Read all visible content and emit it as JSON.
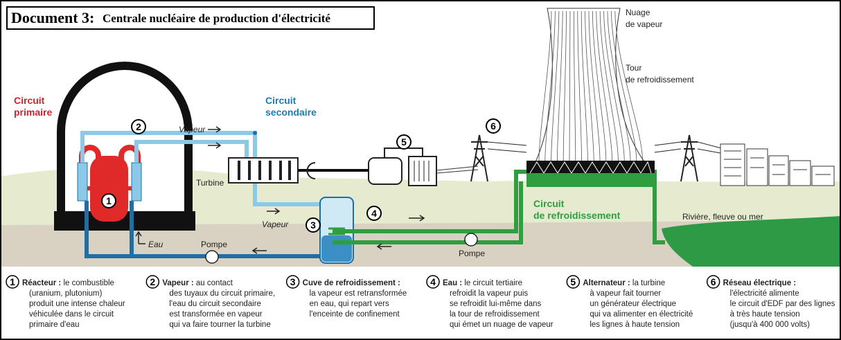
{
  "header": {
    "document": "Document 3:",
    "title": "Centrale nucléaire de production d'électricité"
  },
  "labels": {
    "circuit_primaire": [
      "Circuit",
      "primaire"
    ],
    "circuit_secondaire": [
      "Circuit",
      "secondaire"
    ],
    "vapeur_top": "Vapeur",
    "vapeur_bottom": "Vapeur",
    "turbine": "Turbine",
    "eau": "Eau",
    "pompe_left": "Pompe",
    "pompe_right": "Pompe",
    "circuit_refroidissement": [
      "Circuit",
      "de refroidissement"
    ],
    "nuage": [
      "Nuage",
      "de vapeur"
    ],
    "tour": [
      "Tour",
      "de refroidissement"
    ],
    "riviere": "Rivière, fleuve ou mer"
  },
  "markers": [
    "1",
    "2",
    "3",
    "4",
    "5",
    "6"
  ],
  "legend": [
    {
      "number": "1",
      "heading": "Réacteur :",
      "lines": [
        " le combustible",
        "(uranium, plutonium)",
        "produit une intense chaleur",
        "véhiculée dans le circuit",
        "primaire d'eau"
      ]
    },
    {
      "number": "2",
      "heading": "Vapeur :",
      "lines": [
        " au contact",
        "des tuyaux du circuit primaire,",
        "l'eau du circuit secondaire",
        "est transformée en vapeur",
        "qui va faire tourner la turbine"
      ]
    },
    {
      "number": "3",
      "heading": "Cuve de refroidissement :",
      "lines": [
        "",
        "la vapeur est retransformée",
        "en eau, qui repart vers",
        "l'enceinte de confinement"
      ]
    },
    {
      "number": "4",
      "heading": "Eau :",
      "lines": [
        " le circuit tertiaire",
        "refroidit la vapeur puis",
        "se refroidit lui-même dans",
        "la tour de refroidissement",
        "qui émet un nuage de vapeur"
      ]
    },
    {
      "number": "5",
      "heading": "Alternateur :",
      "lines": [
        " la turbine",
        "à vapeur fait tourner",
        "un générateur électrique",
        "qui va alimenter en électricité",
        "les lignes à haute tension"
      ]
    },
    {
      "number": "6",
      "heading": "Réseau électrique :",
      "lines": [
        "",
        "l'électricité alimente",
        "le circuit d'EDF par des lignes",
        "à très haute tension",
        "(jusqu'à 400 000 volts)"
      ]
    }
  ]
}
